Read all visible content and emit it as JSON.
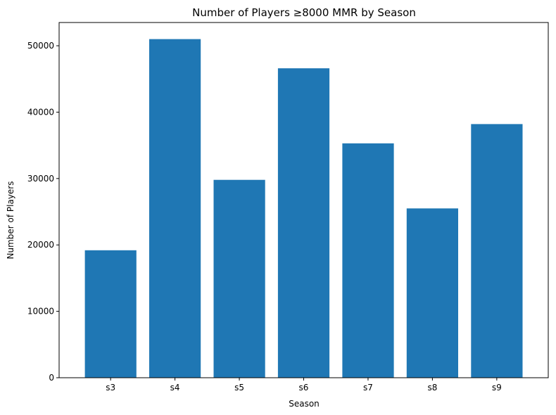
{
  "chart_data": {
    "type": "bar",
    "title": "Number of Players ≥8000 MMR by Season",
    "xlabel": "Season",
    "ylabel": "Number of Players",
    "categories": [
      "s3",
      "s4",
      "s5",
      "s6",
      "s7",
      "s8",
      "s9"
    ],
    "values": [
      19200,
      51000,
      29800,
      46600,
      35300,
      25500,
      38200
    ],
    "ylim": [
      0,
      53500
    ],
    "yticks": [
      "0",
      "10000",
      "20000",
      "30000",
      "40000",
      "50000"
    ],
    "bar_color": "#1f77b4",
    "grid": false,
    "legend": "none"
  }
}
